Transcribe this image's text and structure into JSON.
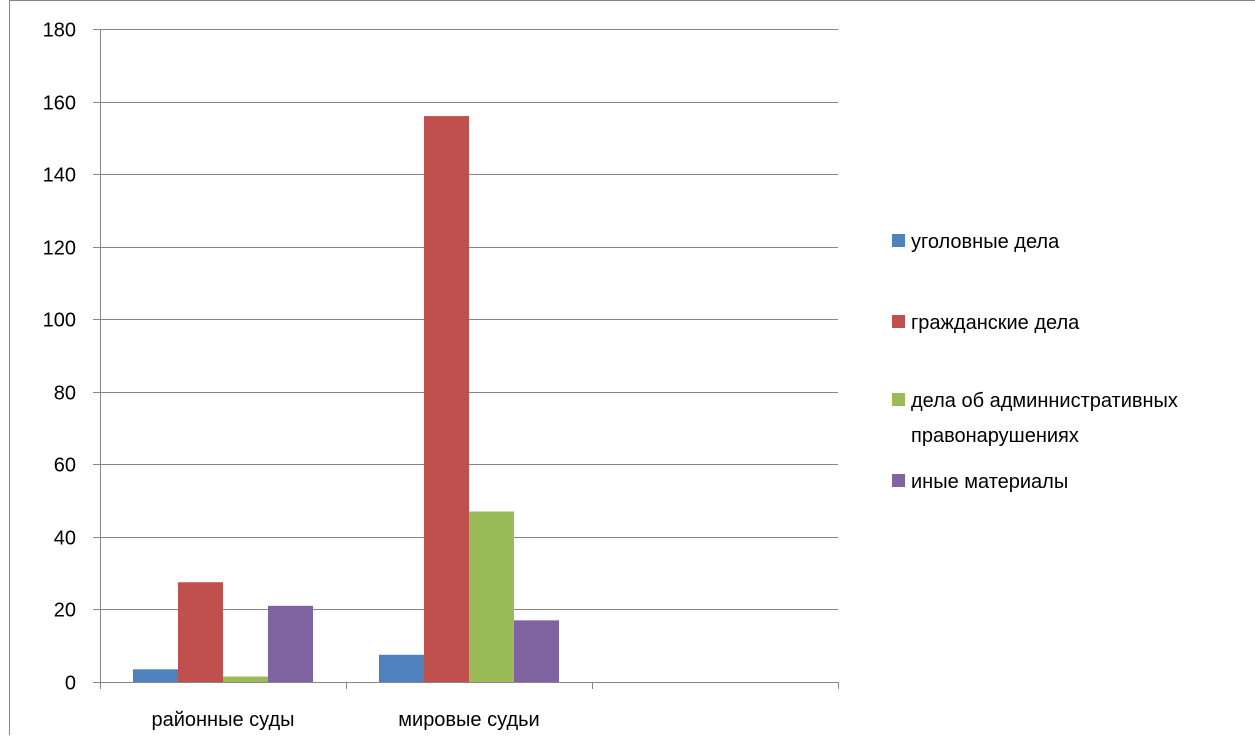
{
  "chart_data": {
    "type": "bar",
    "categories": [
      "районные суды",
      "мировые судьи",
      ""
    ],
    "series": [
      {
        "name": "уголовные дела",
        "color": "#4f81bd",
        "values": [
          3.5,
          7.5,
          null
        ]
      },
      {
        "name": "гражданские дела",
        "color": "#c0504d",
        "values": [
          27.5,
          156,
          null
        ]
      },
      {
        "name": "дела об админнистративных правонарушениях",
        "color": "#9bbb59",
        "values": [
          1.5,
          47,
          null
        ]
      },
      {
        "name": "иные материалы",
        "color": "#8064a2",
        "values": [
          21,
          17,
          null
        ]
      }
    ],
    "ylim": [
      0,
      180
    ],
    "yticks": [
      0,
      20,
      40,
      60,
      80,
      100,
      120,
      140,
      160,
      180
    ],
    "grid": true,
    "legend_position": "right",
    "title": "",
    "xlabel": "",
    "ylabel": ""
  }
}
